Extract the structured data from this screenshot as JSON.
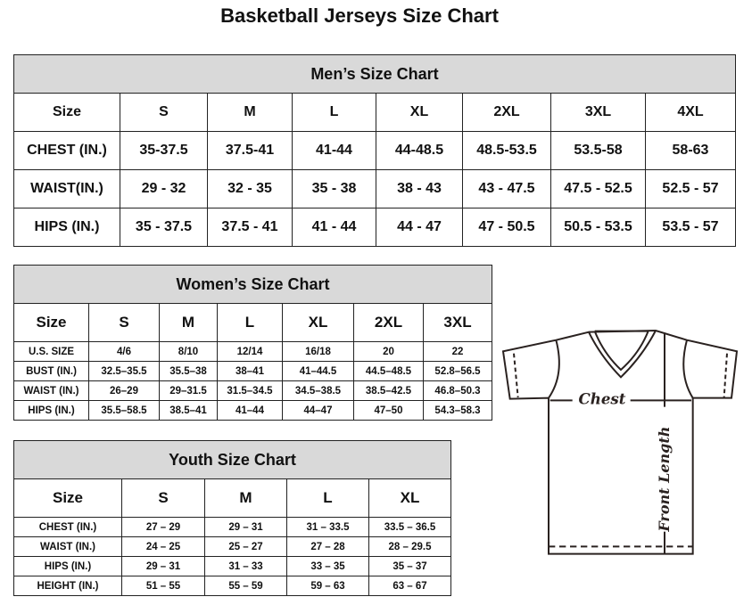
{
  "title": "Basketball Jerseys Size Chart",
  "men": {
    "title": "Men’s Size Chart",
    "header": [
      "Size",
      "S",
      "M",
      "L",
      "XL",
      "2XL",
      "3XL",
      "4XL"
    ],
    "rows": [
      [
        "CHEST (IN.)",
        "35-37.5",
        "37.5-41",
        "41-44",
        "44-48.5",
        "48.5-53.5",
        "53.5-58",
        "58-63"
      ],
      [
        "WAIST(IN.)",
        "29 - 32",
        "32 - 35",
        "35 - 38",
        "38 - 43",
        "43 - 47.5",
        "47.5 - 52.5",
        "52.5 - 57"
      ],
      [
        "HIPS (IN.)",
        "35 - 37.5",
        "37.5 - 41",
        "41 - 44",
        "44 - 47",
        "47 - 50.5",
        "50.5 - 53.5",
        "53.5 - 57"
      ]
    ]
  },
  "women": {
    "title": "Women’s Size Chart",
    "header": [
      "Size",
      "S",
      "M",
      "L",
      "XL",
      "2XL",
      "3XL"
    ],
    "rows": [
      [
        "U.S. SIZE",
        "4/6",
        "8/10",
        "12/14",
        "16/18",
        "20",
        "22"
      ],
      [
        "BUST (IN.)",
        "32.5–35.5",
        "35.5–38",
        "38–41",
        "41–44.5",
        "44.5–48.5",
        "52.8–56.5"
      ],
      [
        "WAIST (IN.)",
        "26–29",
        "29–31.5",
        "31.5–34.5",
        "34.5–38.5",
        "38.5–42.5",
        "46.8–50.3"
      ],
      [
        "HIPS (IN.)",
        "35.5–58.5",
        "38.5–41",
        "41–44",
        "44–47",
        "47–50",
        "54.3–58.3"
      ]
    ]
  },
  "youth": {
    "title": "Youth Size Chart",
    "header": [
      "Size",
      "S",
      "M",
      "L",
      "XL"
    ],
    "rows": [
      [
        "CHEST (IN.)",
        "27 – 29",
        "29 – 31",
        "31 – 33.5",
        "33.5 – 36.5"
      ],
      [
        "WAIST (IN.)",
        "24 – 25",
        "25 – 27",
        "27 – 28",
        "28 – 29.5"
      ],
      [
        "HIPS (IN.)",
        "29 – 31",
        "31 – 33",
        "33 – 35",
        "35 – 37"
      ],
      [
        "HEIGHT (IN.)",
        "51 – 55",
        "55 – 59",
        "59 – 63",
        "63 – 67"
      ]
    ]
  },
  "diagram": {
    "chest_label": "Chest",
    "length_label": "Front Length"
  }
}
